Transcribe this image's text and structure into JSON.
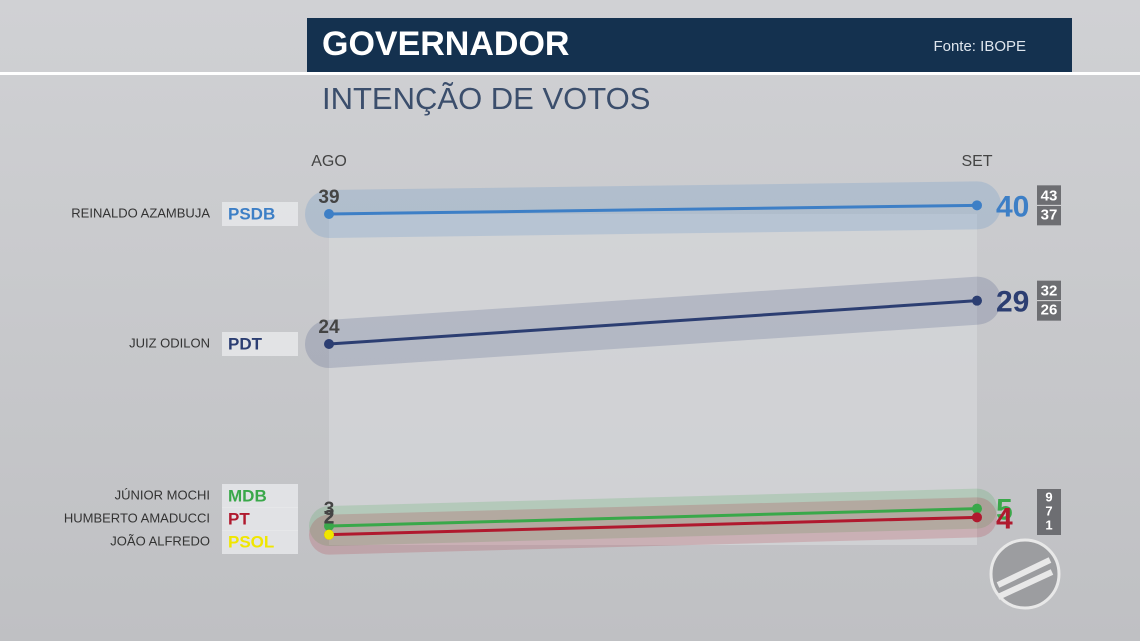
{
  "header": {
    "title": "GOVERNADOR",
    "source": "Fonte: IBOPE"
  },
  "chart_data": {
    "type": "line",
    "title": "INTENÇÃO DE VOTOS",
    "categories": [
      "AGO",
      "SET"
    ],
    "ylim": [
      0,
      45
    ],
    "grid": false,
    "series": [
      {
        "name": "PSDB",
        "candidate": "REINALDO AZAMBUJA",
        "color": "#3d7fc6",
        "values": [
          39,
          40
        ],
        "interval": [
          43,
          37
        ]
      },
      {
        "name": "PDT",
        "candidate": "JUIZ ODILON",
        "color": "#2c3e72",
        "values": [
          24,
          29
        ],
        "interval": [
          32,
          26
        ]
      },
      {
        "name": "MDB",
        "candidate": "JÚNIOR MOCHI",
        "color": "#3aa84a",
        "values": [
          3,
          5
        ]
      },
      {
        "name": "PT",
        "candidate": "HUMBERTO AMADUCCI",
        "color": "#b0192e",
        "values": [
          2,
          4
        ]
      },
      {
        "name": "PSOL",
        "candidate": "JOÃO ALFREDO",
        "color": "#f0e600",
        "values": [
          2,
          null
        ]
      }
    ],
    "stacked_interval": [
      9,
      7,
      1
    ]
  }
}
